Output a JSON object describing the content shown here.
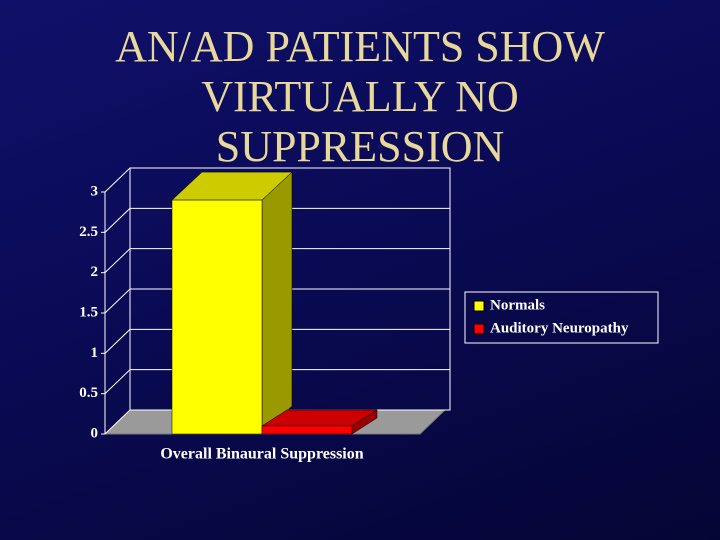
{
  "chart_data": {
    "type": "bar3d",
    "title": "AN/AD PATIENTS SHOW VIRTUALLY NO SUPPRESSION",
    "categories": [
      "Overall Binaural Suppression"
    ],
    "series": [
      {
        "name": "Normals",
        "color": "#ffff00",
        "values": [
          2.9
        ]
      },
      {
        "name": "Auditory Neuropathy",
        "color": "#ff0000",
        "values": [
          0.1
        ]
      }
    ],
    "ylim": [
      0,
      3
    ],
    "yticks": [
      0,
      0.5,
      1,
      1.5,
      2,
      2.5,
      3
    ],
    "grid": true,
    "legend": "right"
  }
}
